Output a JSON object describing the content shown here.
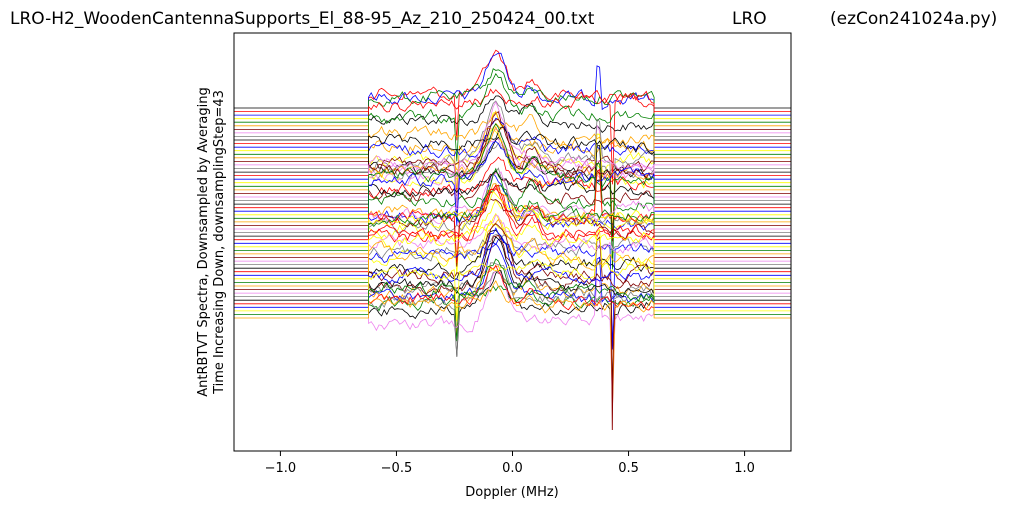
{
  "figure": {
    "title_left": "LRO-H2_WoodenCantennaSupports_El_88-95_Az_210_250424_00.txt",
    "title_mid": "LRO",
    "title_right": "(ezCon241024a.py)"
  },
  "chart_data": {
    "type": "line",
    "xlabel": "Doppler (MHz)",
    "ylabel_line1": "AntRBTVT Spectra, Downsampled by Averaging",
    "ylabel_line2": "Time Increasing Down, downsamplingStep=43",
    "xlim": [
      -1.2,
      1.2
    ],
    "xticks": [
      -1.0,
      -0.5,
      0.0,
      0.5,
      1.0
    ],
    "xtick_labels": [
      "−1.0",
      "−0.5",
      "0.0",
      "0.5",
      "1.0"
    ],
    "grid": false,
    "n_spectra": 60,
    "flat_band_mhz": [
      -0.62,
      0.61
    ],
    "features_mhz": {
      "broad_peak": -0.07,
      "peak_secondary": 0.08,
      "spike_neg": -0.24,
      "spike_pos": 0.37,
      "deep_dip": 0.43
    },
    "series_colors": [
      "#000000",
      "#ff0000",
      "#0000ff",
      "#ffff00",
      "#008000",
      "#ffa500",
      "#800000",
      "#ee82ee",
      "#808080"
    ]
  }
}
